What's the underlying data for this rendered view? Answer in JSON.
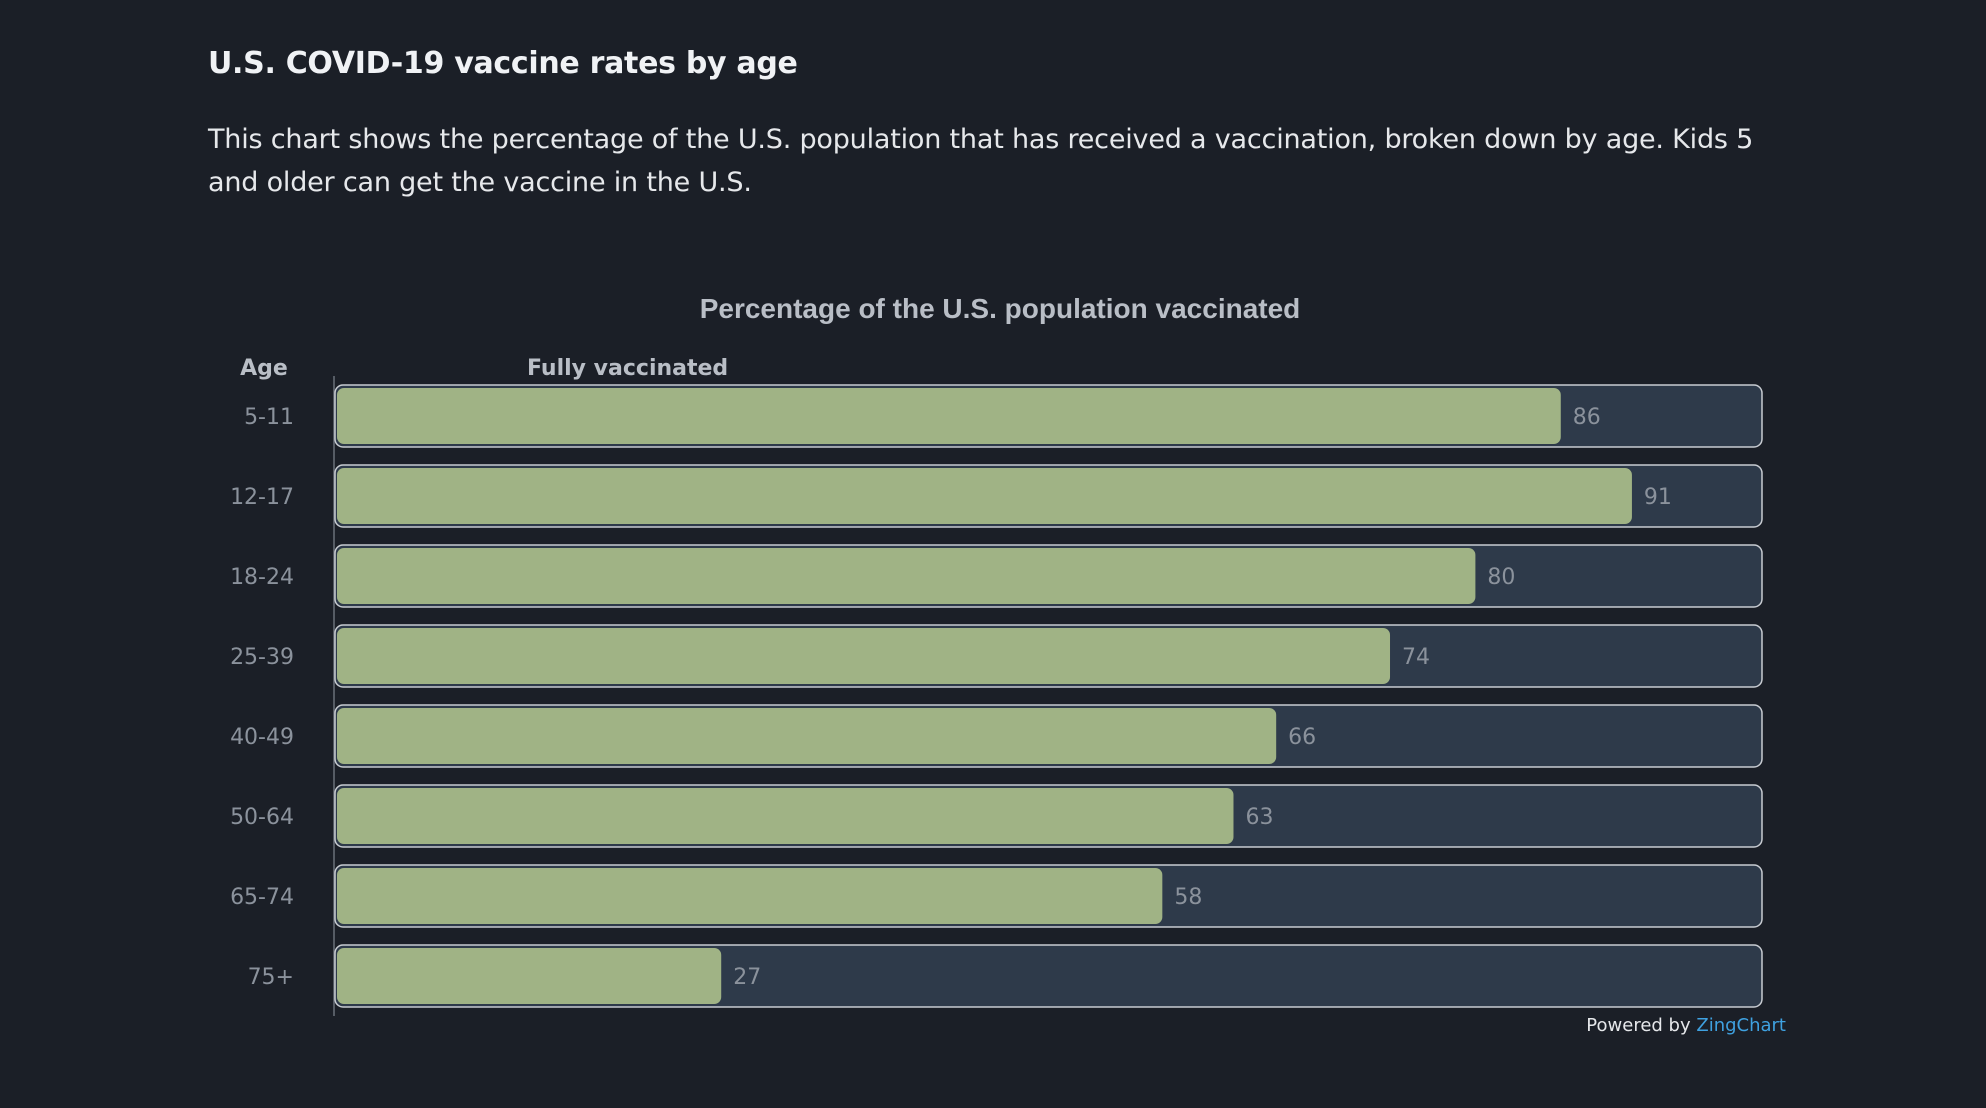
{
  "heading": "U.S. COVID-19 vaccine rates by age",
  "description": "This chart shows the percentage of the U.S. population that has received a vaccination, broken down by age. Kids 5 and older can get the vaccine in the U.S.",
  "footer": {
    "powered_by": "Powered by",
    "brand": "ZingChart"
  },
  "colors": {
    "background": "#1b1f27",
    "bar_fill": "#a0b385",
    "track_fill": "#2e3a4a",
    "track_stroke": "#c8ccd2",
    "label_text": "#8b929c",
    "title_text": "#b9bec6",
    "brand": "#3fa1e0"
  },
  "chart_data": {
    "type": "bar",
    "orientation": "horizontal",
    "title": "Percentage of the U.S. population vaccinated",
    "xlabel": "",
    "ylabel": "Age",
    "series": [
      {
        "name": "Fully vaccinated",
        "values": [
          86,
          91,
          80,
          74,
          66,
          63,
          58,
          27
        ]
      }
    ],
    "categories": [
      "5-11",
      "12-17",
      "18-24",
      "25-39",
      "40-49",
      "50-64",
      "65-74",
      "75+"
    ],
    "xlim": [
      0,
      100
    ],
    "grid": false,
    "legend": "none"
  }
}
